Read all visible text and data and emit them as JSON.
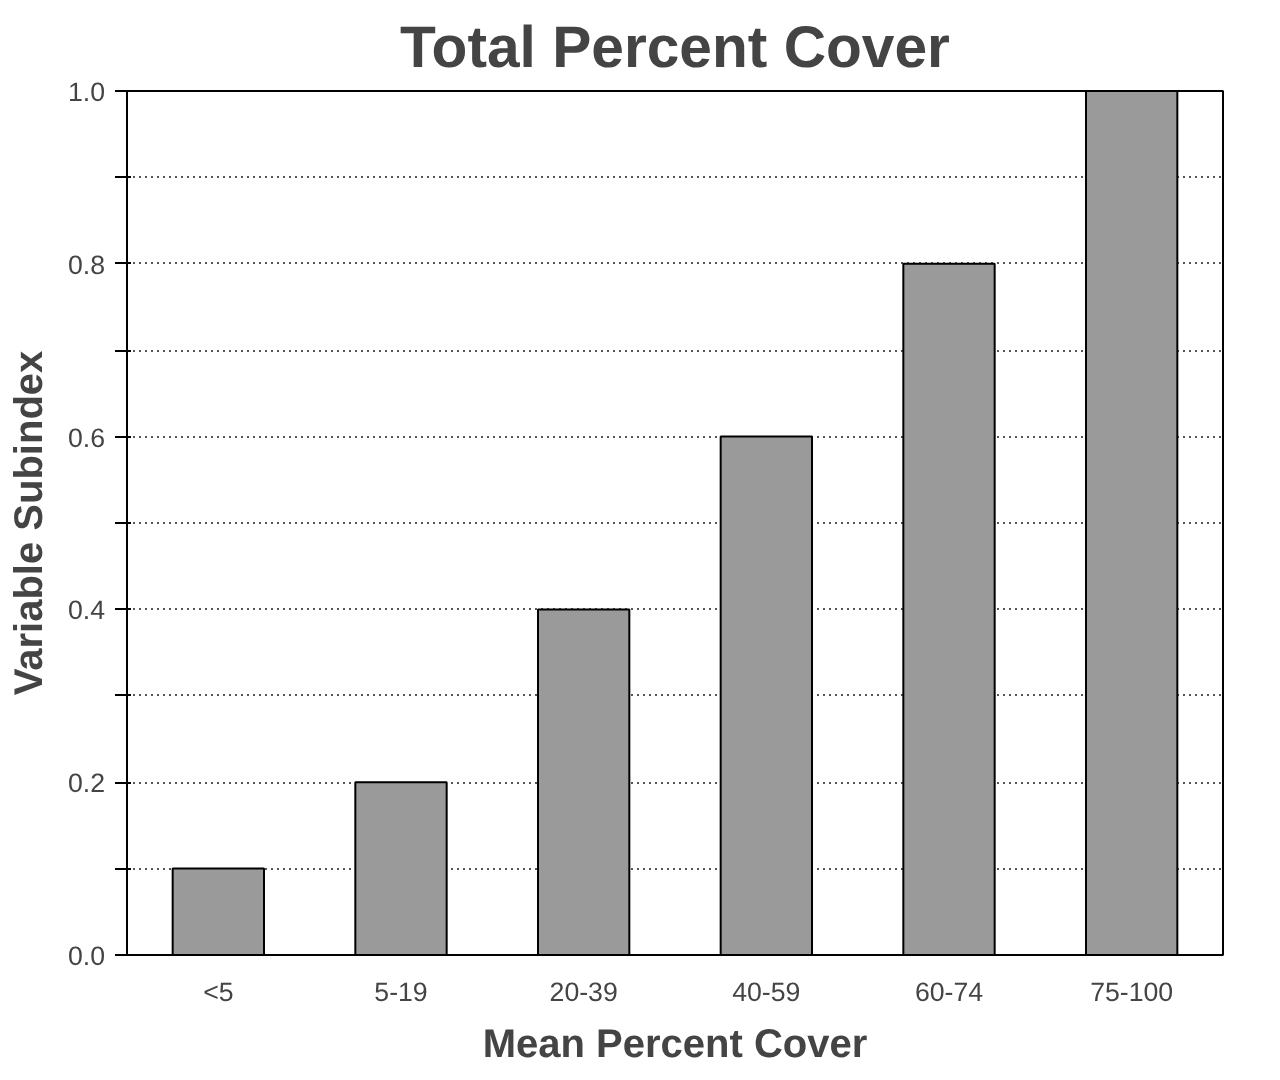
{
  "chart_data": {
    "type": "bar",
    "title": "Total Percent Cover",
    "xlabel": "Mean Percent Cover",
    "ylabel": "Variable Subindex",
    "categories": [
      "<5",
      "5-19",
      "20-39",
      "40-59",
      "60-74",
      "75-100"
    ],
    "values": [
      0.1,
      0.2,
      0.4,
      0.6,
      0.8,
      1.0
    ],
    "color": "#9a9a9a",
    "ylim": [
      0,
      1.0
    ],
    "yticks": [
      {
        "value": 0,
        "label": "0.0"
      },
      {
        "value": 0.1,
        "label": null
      },
      {
        "value": 0.2,
        "label": "0.2"
      },
      {
        "value": 0.3,
        "label": null
      },
      {
        "value": 0.4,
        "label": "0.4"
      },
      {
        "value": 0.5,
        "label": null
      },
      {
        "value": 0.6,
        "label": "0.6"
      },
      {
        "value": 0.7,
        "label": null
      },
      {
        "value": 0.8,
        "label": "0.8"
      },
      {
        "value": 0.9,
        "label": null
      },
      {
        "value": 1.0,
        "label": "1.0"
      }
    ],
    "grid": "y"
  }
}
